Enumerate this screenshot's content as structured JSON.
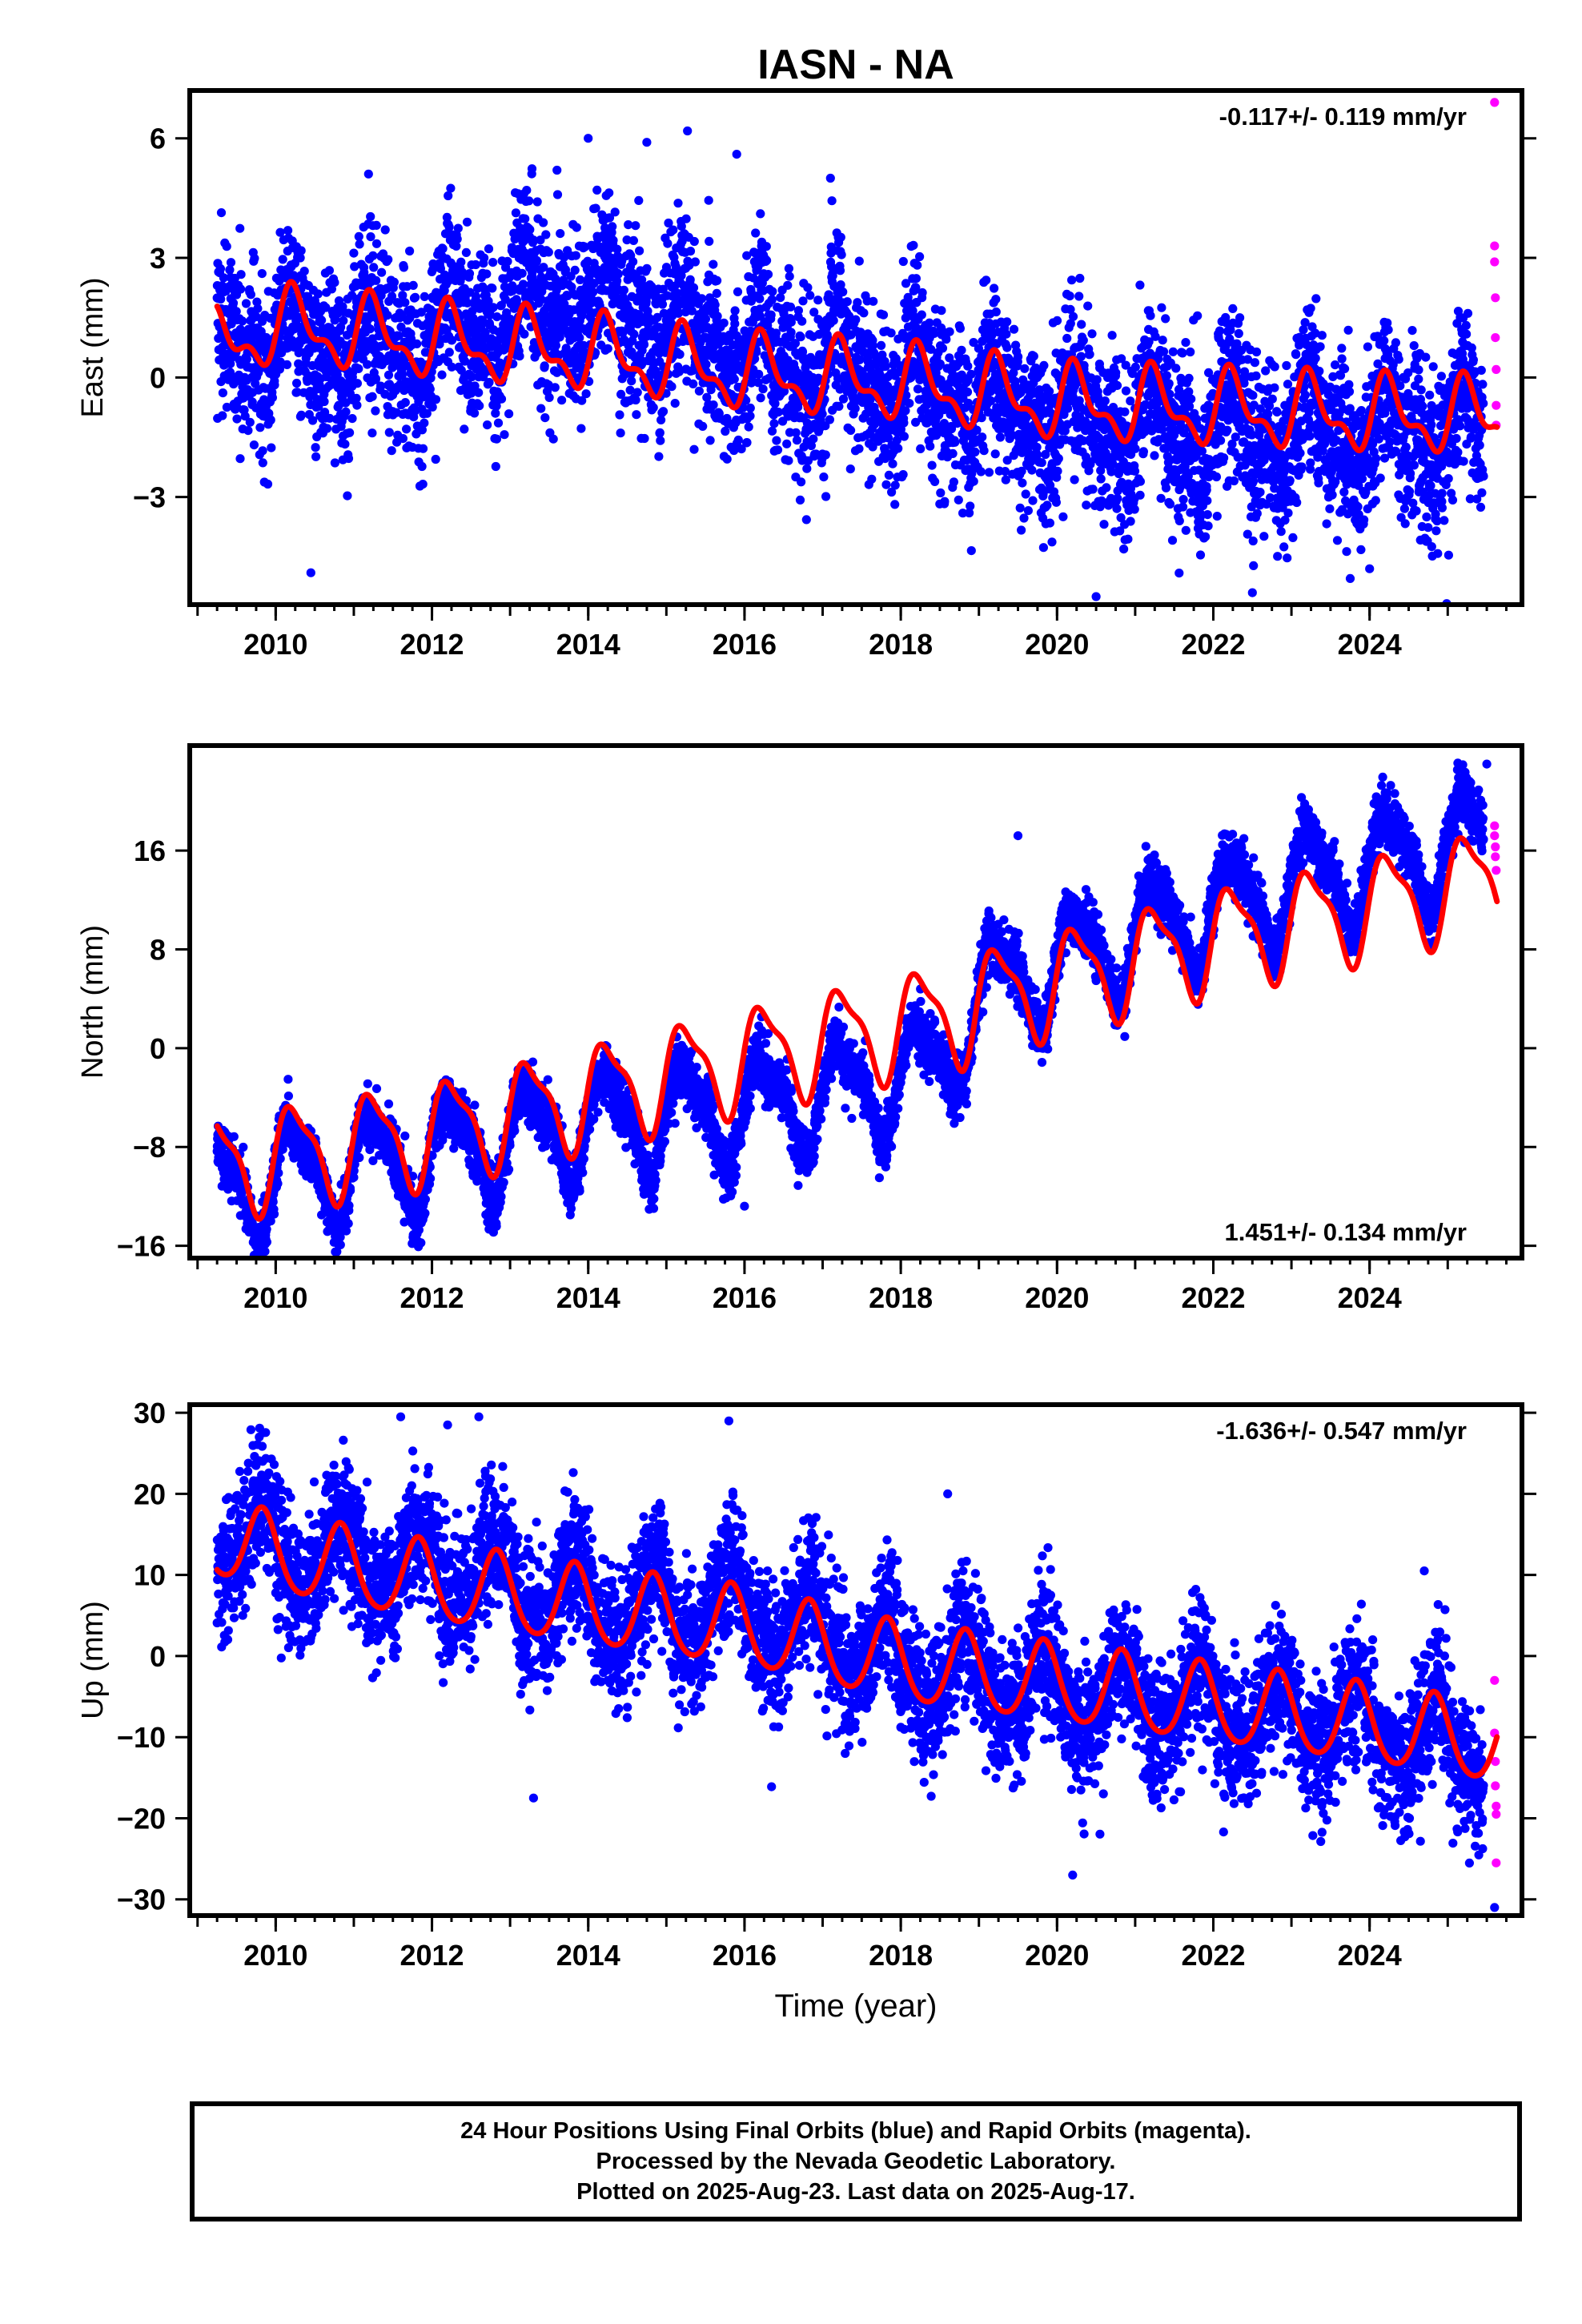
{
  "title": "IASN - NA",
  "colors": {
    "final_orbits": "#0000ff",
    "rapid_orbits": "#ff00ff",
    "model_fit": "#ff0000",
    "frame": "#000000"
  },
  "footer": {
    "line1": "24 Hour Positions Using Final Orbits (blue) and Rapid Orbits (magenta).",
    "line2": "Processed by the Nevada Geodetic Laboratory.",
    "line3": "Plotted on 2025-Aug-23. Last data on 2025-Aug-17."
  },
  "chart_data": [
    {
      "type": "scatter",
      "component": "east",
      "ylabel": "East (mm)",
      "xlabel": "",
      "rate_label": "-0.117+/- 0.119 mm/yr",
      "rate_position": "top-right",
      "xlim": [
        2008.9,
        2025.95
      ],
      "ylim": [
        -5.7,
        7.2
      ],
      "xticks": [
        2010,
        2012,
        2014,
        2016,
        2018,
        2020,
        2022,
        2024
      ],
      "yticks": [
        -3,
        0,
        3,
        6
      ],
      "data_start": 2009.25,
      "data_end": 2025.63,
      "rapid_start": 2025.46,
      "noise_std": 1.05,
      "seasonal_noise": 0.25,
      "model": {
        "breakpoints": [
          [
            2009.25,
            0.75
          ],
          [
            2010.0,
            1.3
          ],
          [
            2012.0,
            0.9
          ],
          [
            2014.0,
            0.6
          ],
          [
            2016.0,
            0.1
          ],
          [
            2018.0,
            -0.15
          ],
          [
            2020.0,
            -0.65
          ],
          [
            2022.0,
            -0.8
          ],
          [
            2024.0,
            -0.95
          ],
          [
            2025.63,
            -1.0
          ]
        ],
        "annual_amp": 0.8,
        "annual_phase": 0.0,
        "semiannual_amp": 0.4,
        "semiannual_phase": 0.55
      },
      "data_offsets": [
        [
          2009.25,
          0.1
        ],
        [
          2010.5,
          -0.4
        ],
        [
          2012.0,
          0.0
        ],
        [
          2013.0,
          0.9
        ],
        [
          2014.0,
          1.3
        ],
        [
          2015.0,
          1.0
        ],
        [
          2016.0,
          0.4
        ],
        [
          2018.0,
          0.1
        ],
        [
          2020.0,
          -0.4
        ],
        [
          2022.0,
          -0.5
        ],
        [
          2024.0,
          -0.4
        ],
        [
          2025.63,
          -0.3
        ]
      ],
      "outliers": [
        [
          2010.45,
          -4.9
        ],
        [
          2013.6,
          5.2
        ],
        [
          2014.0,
          6.0
        ],
        [
          2014.75,
          5.9
        ],
        [
          2015.9,
          5.6
        ],
        [
          2017.1,
          5.0
        ],
        [
          2020.5,
          -5.5
        ],
        [
          2022.5,
          -5.4
        ],
        [
          2024.0,
          -4.8
        ]
      ],
      "rapid_points": [
        [
          2025.6,
          6.9
        ],
        [
          2025.6,
          3.3
        ],
        [
          2025.6,
          2.9
        ],
        [
          2025.61,
          2.0
        ],
        [
          2025.61,
          1.0
        ],
        [
          2025.62,
          0.2
        ],
        [
          2025.62,
          -0.7
        ],
        [
          2025.62,
          -1.2
        ]
      ]
    },
    {
      "type": "scatter",
      "component": "north",
      "ylabel": "North (mm)",
      "xlabel": "",
      "rate_label": "1.451+/- 0.134 mm/yr",
      "rate_position": "bottom-right",
      "xlim": [
        2008.9,
        2025.95
      ],
      "ylim": [
        -17,
        24.5
      ],
      "xticks": [
        2010,
        2012,
        2014,
        2016,
        2018,
        2020,
        2022,
        2024
      ],
      "yticks": [
        -16,
        -8,
        0,
        8,
        16
      ],
      "data_start": 2009.25,
      "data_end": 2025.63,
      "rapid_start": 2025.46,
      "noise_std": 1.15,
      "seasonal_noise": 0.2,
      "model": {
        "breakpoints": [
          [
            2009.25,
            -9.5
          ],
          [
            2012.0,
            -6.8
          ],
          [
            2016.0,
            -0.8
          ],
          [
            2018.8,
            3.0
          ],
          [
            2019.0,
            3.8
          ],
          [
            2022.0,
            8.8
          ],
          [
            2024.0,
            11.5
          ],
          [
            2025.63,
            13.8
          ]
        ],
        "annual_amp": 3.9,
        "annual_phase": 0.0,
        "semiannual_amp": 1.2,
        "semiannual_phase": 0.45
      },
      "data_offsets": [
        [
          2009.25,
          -1.5
        ],
        [
          2012.0,
          -1.8
        ],
        [
          2014.0,
          -2.2
        ],
        [
          2016.0,
          -4.2
        ],
        [
          2017.5,
          -4.5
        ],
        [
          2018.6,
          -4.0
        ],
        [
          2018.9,
          0.2
        ],
        [
          2020.0,
          1.2
        ],
        [
          2022.0,
          2.6
        ],
        [
          2024.0,
          3.2
        ],
        [
          2025.63,
          3.5
        ]
      ],
      "outliers": [
        [
          2016.0,
          -12.8
        ],
        [
          2024.7,
          9.5
        ],
        [
          2019.5,
          17.2
        ],
        [
          2025.5,
          23.0
        ]
      ],
      "rapid_points": [
        [
          2025.6,
          18.0
        ],
        [
          2025.6,
          17.2
        ],
        [
          2025.61,
          16.3
        ],
        [
          2025.61,
          15.5
        ],
        [
          2025.62,
          14.4
        ]
      ]
    },
    {
      "type": "scatter",
      "component": "up",
      "ylabel": "Up (mm)",
      "xlabel": "Time (year)",
      "rate_label": "-1.636+/- 0.547 mm/yr",
      "rate_position": "top-right",
      "xlim": [
        2008.9,
        2025.95
      ],
      "ylim": [
        -32,
        31
      ],
      "xticks": [
        2010,
        2012,
        2014,
        2016,
        2018,
        2020,
        2022,
        2024
      ],
      "yticks": [
        -30,
        -20,
        -10,
        0,
        10,
        20,
        30
      ],
      "data_start": 2009.25,
      "data_end": 2025.63,
      "rapid_start": 2025.46,
      "noise_std": 4.1,
      "seasonal_noise": 1.0,
      "model": {
        "breakpoints": [
          [
            2009.25,
            14.5
          ],
          [
            2010.0,
            12.5
          ],
          [
            2012.0,
            9.0
          ],
          [
            2014.0,
            6.0
          ],
          [
            2016.0,
            3.5
          ],
          [
            2018.0,
            -1.0
          ],
          [
            2020.0,
            -3.5
          ],
          [
            2022.0,
            -6.0
          ],
          [
            2024.0,
            -8.5
          ],
          [
            2025.63,
            -11.0
          ]
        ],
        "annual_amp": 4.8,
        "annual_phase": 0.58,
        "semiannual_amp": 0.6,
        "semiannual_phase": 0.2
      },
      "data_offsets": [
        [
          2009.25,
          0.5
        ],
        [
          2011.0,
          1.0
        ],
        [
          2012.5,
          2.0
        ],
        [
          2014.0,
          0.0
        ],
        [
          2016.0,
          2.5
        ],
        [
          2018.0,
          0.0
        ],
        [
          2020.0,
          -1.0
        ],
        [
          2022.0,
          -0.5
        ],
        [
          2024.0,
          -0.5
        ],
        [
          2025.63,
          -1.0
        ]
      ],
      "outliers": [
        [
          2013.3,
          -17.5
        ],
        [
          2011.6,
          29.5
        ],
        [
          2012.2,
          28.5
        ],
        [
          2012.6,
          29.5
        ],
        [
          2015.8,
          29.0
        ],
        [
          2018.6,
          20.0
        ],
        [
          2024.7,
          10.5
        ],
        [
          2020.2,
          -27.0
        ],
        [
          2025.6,
          -31.0
        ]
      ],
      "rapid_points": [
        [
          2025.6,
          -3.0
        ],
        [
          2025.6,
          -9.5
        ],
        [
          2025.61,
          -13.0
        ],
        [
          2025.61,
          -16.0
        ],
        [
          2025.62,
          -18.5
        ],
        [
          2025.62,
          -19.5
        ],
        [
          2025.62,
          -25.5
        ]
      ]
    }
  ]
}
